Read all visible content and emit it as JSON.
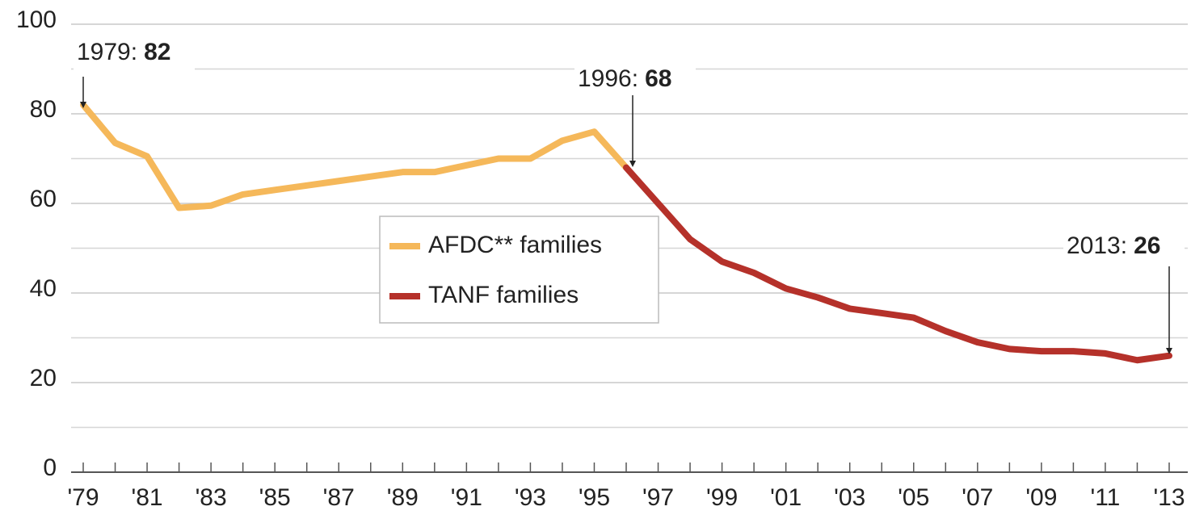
{
  "chart_data": {
    "type": "line",
    "x": [
      1979,
      1980,
      1981,
      1982,
      1983,
      1984,
      1985,
      1986,
      1987,
      1988,
      1989,
      1990,
      1991,
      1992,
      1993,
      1994,
      1995,
      1996,
      1997,
      1998,
      1999,
      2000,
      2001,
      2002,
      2003,
      2004,
      2005,
      2006,
      2007,
      2008,
      2009,
      2010,
      2011,
      2012,
      2013
    ],
    "series": [
      {
        "name": "AFDC** families",
        "color": "#f5b85a",
        "values": [
          82,
          73.5,
          70.5,
          59,
          59.5,
          62,
          63,
          64,
          65,
          66,
          67,
          67,
          68.5,
          70,
          70,
          74,
          76,
          68,
          null,
          null,
          null,
          null,
          null,
          null,
          null,
          null,
          null,
          null,
          null,
          null,
          null,
          null,
          null,
          null,
          null
        ]
      },
      {
        "name": "TANF families",
        "color": "#b5312a",
        "values": [
          null,
          null,
          null,
          null,
          null,
          null,
          null,
          null,
          null,
          null,
          null,
          null,
          null,
          null,
          null,
          null,
          null,
          68,
          60,
          52,
          47,
          44.5,
          41,
          39,
          36.5,
          35.5,
          34.5,
          31.5,
          29,
          27.5,
          27,
          27,
          26.5,
          25,
          26
        ]
      }
    ],
    "xlim": [
      1979,
      2013
    ],
    "xticks": [
      {
        "value": 1979,
        "label": "'79"
      },
      {
        "value": 1981,
        "label": "'81"
      },
      {
        "value": 1983,
        "label": "'83"
      },
      {
        "value": 1985,
        "label": "'85"
      },
      {
        "value": 1987,
        "label": "'87"
      },
      {
        "value": 1989,
        "label": "'89"
      },
      {
        "value": 1991,
        "label": "'91"
      },
      {
        "value": 1993,
        "label": "'93"
      },
      {
        "value": 1995,
        "label": "'95"
      },
      {
        "value": 1997,
        "label": "'97"
      },
      {
        "value": 1999,
        "label": "'99"
      },
      {
        "value": 2001,
        "label": "'01"
      },
      {
        "value": 2003,
        "label": "'03"
      },
      {
        "value": 2005,
        "label": "'05"
      },
      {
        "value": 2007,
        "label": "'07"
      },
      {
        "value": 2009,
        "label": "'09"
      },
      {
        "value": 2011,
        "label": "'11"
      },
      {
        "value": 2013,
        "label": "'13"
      }
    ],
    "x_minor_ticks": [
      1980,
      1982,
      1984,
      1986,
      1988,
      1990,
      1992,
      1994,
      1996,
      1998,
      2000,
      2002,
      2004,
      2006,
      2008,
      2010,
      2012
    ],
    "ylim": [
      0,
      100
    ],
    "yticks": [
      0,
      20,
      40,
      60,
      80,
      100
    ],
    "y_minor_ticks": [
      10,
      30,
      50,
      70,
      90
    ],
    "grid": true,
    "annotations": [
      {
        "label": "1979:",
        "value": "82"
      },
      {
        "label": "1996:",
        "value": "68"
      },
      {
        "label": "2013:",
        "value": "26"
      }
    ]
  }
}
